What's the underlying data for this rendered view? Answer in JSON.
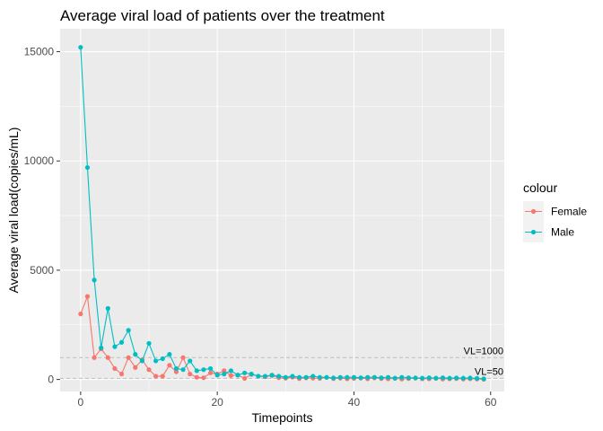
{
  "chart_data": {
    "type": "line",
    "title": "Average viral load of patients over the treatment",
    "xlabel": "Timepoints",
    "ylabel": "Average viral load(copies/mL)",
    "xlim": [
      -3,
      62
    ],
    "ylim": [
      -550,
      16050
    ],
    "x_ticks": [
      0,
      20,
      40,
      60
    ],
    "y_ticks": [
      0,
      5000,
      10000,
      15000
    ],
    "grid": true,
    "legend": {
      "title": "colour",
      "position": "right"
    },
    "series": [
      {
        "name": "Female",
        "color": "#F8766D",
        "x": [
          0,
          1,
          2,
          3,
          4,
          5,
          6,
          7,
          8,
          9,
          10,
          11,
          12,
          13,
          14,
          15,
          16,
          17,
          18,
          19,
          20,
          21,
          22,
          23,
          24,
          25,
          26,
          27,
          28,
          29,
          30,
          31,
          32,
          33,
          34,
          35,
          36,
          37,
          38,
          39,
          40,
          41,
          42,
          43,
          44,
          45,
          46,
          47,
          48,
          49,
          50,
          51,
          52,
          53,
          54,
          55,
          56,
          57,
          58,
          59
        ],
        "values": [
          3000,
          3800,
          1000,
          1400,
          1000,
          500,
          250,
          1000,
          550,
          900,
          450,
          150,
          150,
          650,
          350,
          1000,
          250,
          100,
          80,
          300,
          250,
          400,
          180,
          200,
          50,
          230,
          150,
          120,
          180,
          80,
          60,
          100,
          40,
          70,
          60,
          50,
          90,
          40,
          60,
          30,
          50,
          60,
          30,
          70,
          40,
          30,
          50,
          20,
          40,
          60,
          30,
          30,
          50,
          20,
          30,
          40,
          20,
          30,
          20,
          10
        ]
      },
      {
        "name": "Male",
        "color": "#00BFC4",
        "x": [
          0,
          1,
          2,
          3,
          4,
          5,
          6,
          7,
          8,
          9,
          10,
          11,
          12,
          13,
          14,
          15,
          16,
          17,
          18,
          19,
          20,
          21,
          22,
          23,
          24,
          25,
          26,
          27,
          28,
          29,
          30,
          31,
          32,
          33,
          34,
          35,
          36,
          37,
          38,
          39,
          40,
          41,
          42,
          43,
          44,
          45,
          46,
          47,
          48,
          49,
          50,
          51,
          52,
          53,
          54,
          55,
          56,
          57,
          58,
          59
        ],
        "values": [
          15200,
          9700,
          4550,
          1450,
          3250,
          1500,
          1700,
          2250,
          1150,
          850,
          1650,
          850,
          950,
          1150,
          500,
          450,
          850,
          400,
          450,
          500,
          200,
          250,
          400,
          200,
          300,
          250,
          150,
          150,
          200,
          150,
          100,
          150,
          100,
          100,
          150,
          100,
          100,
          70,
          100,
          100,
          100,
          80,
          100,
          100,
          80,
          100,
          60,
          100,
          80,
          70,
          60,
          80,
          60,
          80,
          60,
          70,
          60,
          70,
          50,
          30
        ]
      }
    ],
    "reference_lines": [
      {
        "y": 1000,
        "label": "VL=1000"
      },
      {
        "y": 50,
        "label": "VL=50"
      }
    ]
  }
}
